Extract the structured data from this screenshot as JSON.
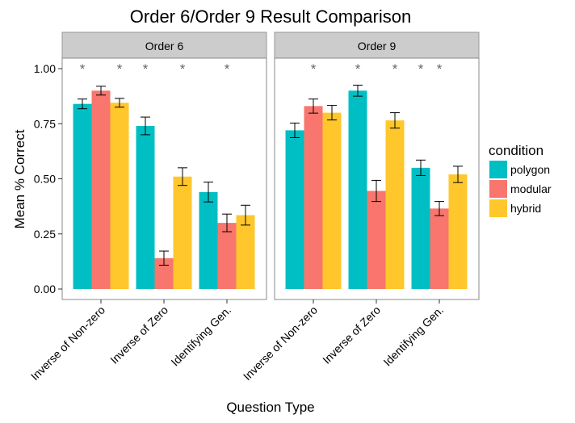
{
  "chart_data": {
    "type": "bar",
    "title": "Order 6/Order 9 Result Comparison",
    "xlabel": "Question Type",
    "ylabel": "Mean % Correct",
    "ylim": [
      0,
      1.05
    ],
    "yticks": [
      "0.00",
      "0.25",
      "0.50",
      "0.75",
      "1.00"
    ],
    "grid": false,
    "legend": {
      "title": "condition",
      "position": "right",
      "entries": [
        "polygon",
        "modular",
        "hybrid"
      ]
    },
    "colors": {
      "polygon": "#00BFC4",
      "modular": "#F8766D",
      "hybrid": "#FFC72C"
    },
    "categories": [
      "Inverse of Non-zero",
      "Inverse of Zero",
      "Identifying Gen."
    ],
    "significance_marker": "*",
    "panels": [
      {
        "label": "Order 6",
        "series": [
          {
            "name": "polygon",
            "values": [
              0.84,
              0.74,
              0.44
            ],
            "errors": [
              0.022,
              0.04,
              0.045
            ]
          },
          {
            "name": "modular",
            "values": [
              0.9,
              0.14,
              0.3
            ],
            "errors": [
              0.02,
              0.032,
              0.04
            ]
          },
          {
            "name": "hybrid",
            "values": [
              0.845,
              0.51,
              0.335
            ],
            "errors": [
              0.02,
              0.04,
              0.045
            ]
          }
        ],
        "significance": [
          {
            "category": "Inverse of Non-zero",
            "series": [
              "polygon",
              "hybrid"
            ]
          },
          {
            "category": "Inverse of Zero",
            "series": [
              "polygon",
              "hybrid"
            ]
          },
          {
            "category": "Identifying Gen.",
            "series": [
              "modular"
            ]
          }
        ]
      },
      {
        "label": "Order 9",
        "series": [
          {
            "name": "polygon",
            "values": [
              0.72,
              0.9,
              0.55
            ],
            "errors": [
              0.033,
              0.025,
              0.035
            ]
          },
          {
            "name": "modular",
            "values": [
              0.83,
              0.445,
              0.365
            ],
            "errors": [
              0.032,
              0.048,
              0.032
            ]
          },
          {
            "name": "hybrid",
            "values": [
              0.8,
              0.765,
              0.52
            ],
            "errors": [
              0.033,
              0.035,
              0.037
            ]
          }
        ],
        "significance": [
          {
            "category": "Inverse of Non-zero",
            "series": [
              "modular"
            ]
          },
          {
            "category": "Inverse of Zero",
            "series": [
              "polygon",
              "hybrid"
            ]
          },
          {
            "category": "Identifying Gen.",
            "series": [
              "polygon",
              "modular"
            ]
          }
        ]
      }
    ]
  }
}
